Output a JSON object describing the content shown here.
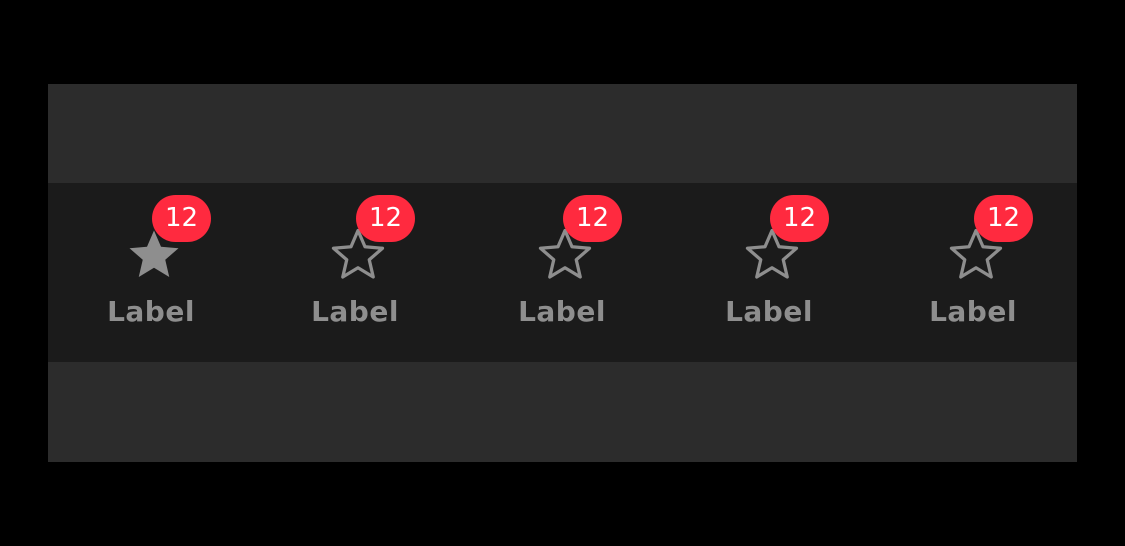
{
  "colors": {
    "background": "#000000",
    "frame": "#2c2c2c",
    "tabbar": "#1b1b1b",
    "inactive": "#8e8e8e",
    "badge": "#ff2a3f",
    "badge_text": "#ffffff"
  },
  "tabbar": {
    "tabs": [
      {
        "label": "Label",
        "icon": "star-filled-icon",
        "badge": "12",
        "selected": true
      },
      {
        "label": "Label",
        "icon": "star-outline-icon",
        "badge": "12",
        "selected": false
      },
      {
        "label": "Label",
        "icon": "star-outline-icon",
        "badge": "12",
        "selected": false
      },
      {
        "label": "Label",
        "icon": "star-outline-icon",
        "badge": "12",
        "selected": false
      },
      {
        "label": "Label",
        "icon": "star-outline-icon",
        "badge": "12",
        "selected": false
      }
    ]
  }
}
